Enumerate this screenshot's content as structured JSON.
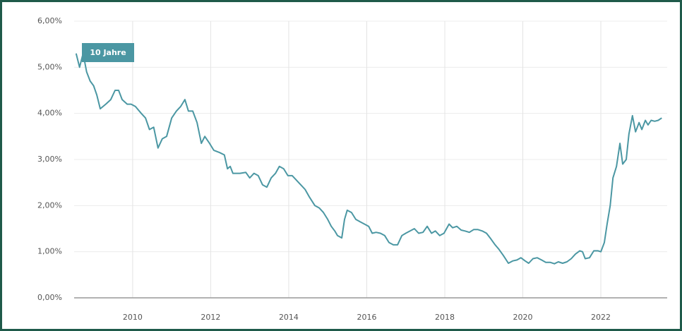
{
  "chart_data": {
    "type": "line",
    "x": [
      2008.55,
      2008.64,
      2008.73,
      2008.82,
      2008.91,
      2009.0,
      2009.08,
      2009.17,
      2009.31,
      2009.44,
      2009.55,
      2009.64,
      2009.73,
      2009.86,
      2009.96,
      2010.07,
      2010.22,
      2010.33,
      2010.43,
      2010.54,
      2010.65,
      2010.76,
      2010.87,
      2011.0,
      2011.12,
      2011.23,
      2011.34,
      2011.43,
      2011.54,
      2011.65,
      2011.76,
      2011.85,
      2011.97,
      2012.08,
      2012.23,
      2012.35,
      2012.43,
      2012.5,
      2012.57,
      2012.75,
      2012.9,
      2013.0,
      2013.11,
      2013.22,
      2013.33,
      2013.44,
      2013.55,
      2013.66,
      2013.76,
      2013.87,
      2013.98,
      2014.09,
      2014.2,
      2014.31,
      2014.42,
      2014.52,
      2014.67,
      2014.78,
      2014.89,
      2015.0,
      2015.09,
      2015.18,
      2015.25,
      2015.36,
      2015.43,
      2015.5,
      2015.61,
      2015.72,
      2015.83,
      2015.94,
      2016.05,
      2016.14,
      2016.24,
      2016.35,
      2016.46,
      2016.57,
      2016.68,
      2016.79,
      2016.9,
      2017.0,
      2017.11,
      2017.22,
      2017.33,
      2017.44,
      2017.55,
      2017.66,
      2017.76,
      2017.87,
      2017.98,
      2018.11,
      2018.2,
      2018.31,
      2018.42,
      2018.52,
      2018.63,
      2018.74,
      2018.85,
      2018.96,
      2019.07,
      2019.18,
      2019.29,
      2019.39,
      2019.5,
      2019.63,
      2019.74,
      2019.85,
      2019.95,
      2020.06,
      2020.15,
      2020.26,
      2020.37,
      2020.48,
      2020.59,
      2020.7,
      2020.81,
      2020.91,
      2021.02,
      2021.13,
      2021.24,
      2021.35,
      2021.46,
      2021.53,
      2021.6,
      2021.71,
      2021.82,
      2021.93,
      2022.0,
      2022.09,
      2022.16,
      2022.24,
      2022.31,
      2022.4,
      2022.49,
      2022.56,
      2022.65,
      2022.72,
      2022.81,
      2022.89,
      2022.98,
      2023.05,
      2023.14,
      2023.21,
      2023.29,
      2023.38,
      2023.47,
      2023.56
    ],
    "series": [
      {
        "name": "10 Jahre",
        "color": "#4b97a3",
        "values": [
          5.3,
          5.0,
          5.3,
          4.9,
          4.7,
          4.6,
          4.4,
          4.1,
          4.2,
          4.3,
          4.5,
          4.5,
          4.3,
          4.2,
          4.2,
          4.15,
          4.0,
          3.9,
          3.65,
          3.7,
          3.25,
          3.45,
          3.5,
          3.9,
          4.05,
          4.15,
          4.3,
          4.05,
          4.05,
          3.8,
          3.35,
          3.5,
          3.35,
          3.2,
          3.15,
          3.1,
          2.8,
          2.85,
          2.7,
          2.7,
          2.72,
          2.6,
          2.7,
          2.65,
          2.45,
          2.4,
          2.6,
          2.7,
          2.85,
          2.8,
          2.65,
          2.65,
          2.55,
          2.45,
          2.35,
          2.2,
          2.0,
          1.95,
          1.85,
          1.7,
          1.55,
          1.45,
          1.35,
          1.3,
          1.7,
          1.9,
          1.85,
          1.7,
          1.65,
          1.6,
          1.55,
          1.4,
          1.42,
          1.4,
          1.35,
          1.2,
          1.15,
          1.15,
          1.35,
          1.4,
          1.45,
          1.5,
          1.4,
          1.42,
          1.55,
          1.4,
          1.45,
          1.35,
          1.4,
          1.6,
          1.52,
          1.55,
          1.47,
          1.45,
          1.42,
          1.48,
          1.48,
          1.45,
          1.4,
          1.28,
          1.15,
          1.05,
          0.92,
          0.75,
          0.8,
          0.82,
          0.87,
          0.8,
          0.75,
          0.85,
          0.87,
          0.82,
          0.77,
          0.77,
          0.74,
          0.78,
          0.75,
          0.78,
          0.85,
          0.95,
          1.02,
          1.0,
          0.85,
          0.87,
          1.02,
          1.02,
          1.0,
          1.2,
          1.6,
          2.0,
          2.6,
          2.85,
          3.35,
          2.9,
          3.0,
          3.55,
          3.95,
          3.6,
          3.8,
          3.65,
          3.85,
          3.75,
          3.85,
          3.83,
          3.85,
          3.9
        ]
      }
    ],
    "xlim": [
      2008.5,
      2023.7
    ],
    "xticks": [
      2010,
      2012,
      2014,
      2016,
      2018,
      2020,
      2022
    ],
    "ylim": [
      0,
      6
    ],
    "yticks": [
      {
        "value": 0,
        "label": "0,00%"
      },
      {
        "value": 1,
        "label": "1,00%"
      },
      {
        "value": 2,
        "label": "2,00%"
      },
      {
        "value": 3,
        "label": "3,00%"
      },
      {
        "value": 4,
        "label": "4,00%"
      },
      {
        "value": 5,
        "label": "5,00%"
      },
      {
        "value": 6,
        "label": "6,00%"
      }
    ],
    "grid": true
  }
}
